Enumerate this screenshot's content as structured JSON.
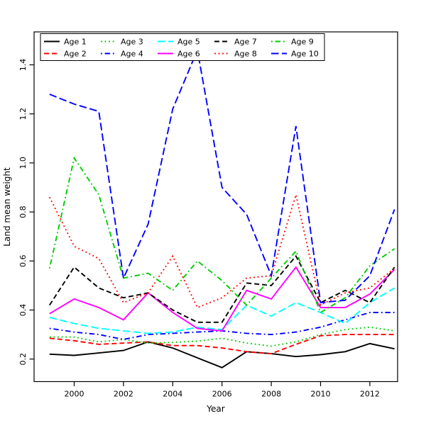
{
  "figure": {
    "background": "#ffffff",
    "xlabel": "Year",
    "ylabel": "Land mean weight",
    "x_ticks": [
      2000,
      2002,
      2004,
      2006,
      2008,
      2010,
      2012
    ],
    "y_ticks": [
      "0.2",
      "0.4",
      "0.6",
      "0.8",
      "1.0",
      "1.2",
      "1.4"
    ],
    "axis_color": "#000000"
  },
  "chart_data": {
    "type": "line",
    "title": "",
    "xlabel": "Year",
    "ylabel": "Land mean weight",
    "x": [
      1999,
      2000,
      2001,
      2002,
      2003,
      2004,
      2005,
      2006,
      2007,
      2008,
      2009,
      2010,
      2011,
      2012,
      2013
    ],
    "xlim": [
      1998.4,
      2013.2
    ],
    "ylim": [
      0.11,
      1.53
    ],
    "grid": false,
    "legend_position": "top-left-inside",
    "series": [
      {
        "name": "Age 1",
        "color": "#000000",
        "linestyle": "solid",
        "values": [
          0.22,
          0.215,
          0.225,
          0.235,
          0.27,
          0.245,
          0.205,
          0.165,
          0.23,
          0.222,
          0.21,
          0.218,
          0.23,
          0.263,
          0.242
        ]
      },
      {
        "name": "Age 2",
        "color": "#ff0000",
        "linestyle": "dashed",
        "values": [
          0.285,
          0.275,
          0.26,
          0.265,
          0.27,
          0.255,
          0.255,
          0.245,
          0.23,
          0.222,
          0.26,
          0.295,
          0.3,
          0.3,
          0.3
        ]
      },
      {
        "name": "Age 3",
        "color": "#00cd00",
        "linestyle": "dotted",
        "values": [
          0.29,
          0.29,
          0.27,
          0.28,
          0.265,
          0.268,
          0.273,
          0.285,
          0.265,
          0.253,
          0.27,
          0.3,
          0.32,
          0.33,
          0.315
        ]
      },
      {
        "name": "Age 4",
        "color": "#0000ff",
        "linestyle": "dashdot",
        "values": [
          0.325,
          0.31,
          0.3,
          0.28,
          0.3,
          0.305,
          0.31,
          0.315,
          0.305,
          0.3,
          0.31,
          0.33,
          0.36,
          0.39,
          0.39
        ]
      },
      {
        "name": "Age 5",
        "color": "#00ffff",
        "linestyle": "longdash",
        "values": [
          0.37,
          0.345,
          0.325,
          0.315,
          0.305,
          0.31,
          0.33,
          0.32,
          0.42,
          0.375,
          0.43,
          0.39,
          0.345,
          0.43,
          0.49
        ]
      },
      {
        "name": "Age 6",
        "color": "#ff00ff",
        "linestyle": "solid",
        "values": [
          0.385,
          0.445,
          0.41,
          0.36,
          0.47,
          0.39,
          0.325,
          0.315,
          0.48,
          0.445,
          0.575,
          0.41,
          0.41,
          0.465,
          0.565
        ]
      },
      {
        "name": "Age 7",
        "color": "#000000",
        "linestyle": "dashed",
        "values": [
          0.42,
          0.575,
          0.49,
          0.45,
          0.47,
          0.4,
          0.35,
          0.35,
          0.51,
          0.5,
          0.62,
          0.43,
          0.48,
          0.43,
          0.575
        ]
      },
      {
        "name": "Age 8",
        "color": "#ff0000",
        "linestyle": "dotted",
        "values": [
          0.86,
          0.66,
          0.61,
          0.43,
          0.47,
          0.62,
          0.41,
          0.45,
          0.53,
          0.54,
          0.87,
          0.42,
          0.47,
          0.49,
          0.57
        ]
      },
      {
        "name": "Age 9",
        "color": "#00cd00",
        "linestyle": "dashdot",
        "values": [
          0.57,
          1.02,
          0.87,
          0.53,
          0.55,
          0.48,
          0.6,
          0.52,
          0.42,
          0.53,
          0.64,
          0.39,
          0.45,
          0.58,
          0.65
        ]
      },
      {
        "name": "Age 10",
        "color": "#0000ff",
        "linestyle": "longdash",
        "values": [
          1.28,
          1.24,
          1.21,
          0.53,
          0.75,
          1.22,
          1.46,
          0.9,
          0.79,
          0.54,
          1.15,
          0.43,
          0.44,
          0.54,
          0.81
        ]
      }
    ]
  }
}
